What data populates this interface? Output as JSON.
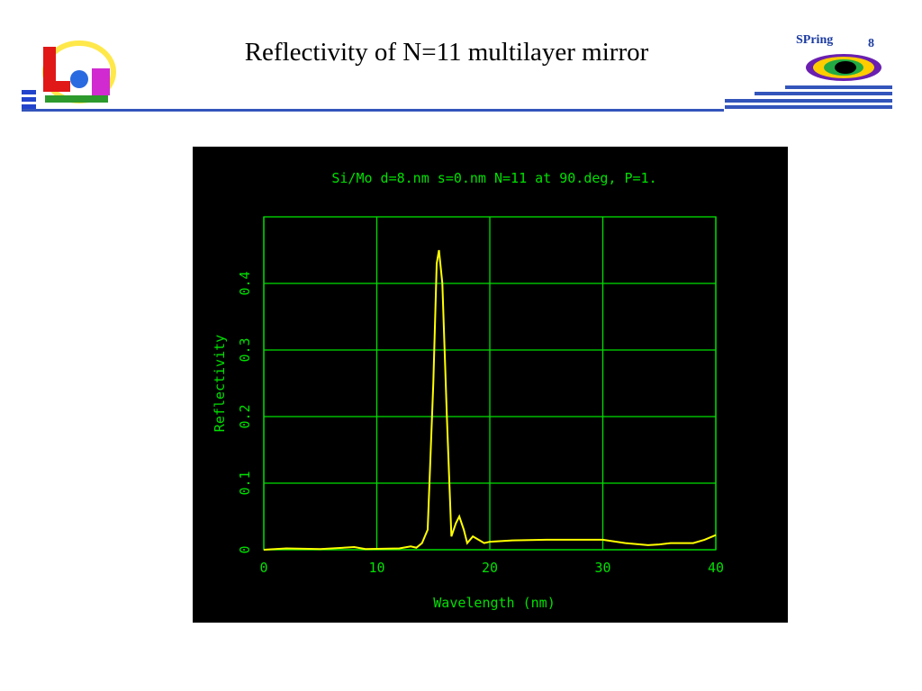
{
  "slide": {
    "title": "Reflectivity of N=11 multilayer mirror",
    "logo_text": "SPring",
    "logo_number": "8"
  },
  "chart_data": {
    "type": "line",
    "title": "Si/Mo d=8.nm s=0.nm N=11 at 90.deg, P=1.",
    "x_label": "Wavelength (nm)",
    "y_label": "Reflectivity",
    "x": [
      0,
      2,
      5,
      8,
      9,
      12,
      13,
      13.5,
      14,
      14.5,
      15,
      15.3,
      15.5,
      15.8,
      16.2,
      16.6,
      17,
      17.3,
      17.7,
      18,
      18.5,
      19,
      19.5,
      20,
      22,
      25,
      30,
      32,
      34,
      35,
      36,
      38,
      39,
      40
    ],
    "values": [
      0,
      0.002,
      0.001,
      0.004,
      0.001,
      0.002,
      0.005,
      0.003,
      0.01,
      0.03,
      0.25,
      0.43,
      0.45,
      0.4,
      0.2,
      0.02,
      0.04,
      0.05,
      0.03,
      0.01,
      0.02,
      0.015,
      0.01,
      0.012,
      0.014,
      0.015,
      0.015,
      0.01,
      0.007,
      0.008,
      0.01,
      0.01,
      0.015,
      0.022
    ],
    "color": "#ffff00",
    "grid": true,
    "xlim": [
      0,
      40
    ],
    "xticks": [
      0,
      10,
      20,
      30,
      40
    ],
    "ylim": [
      0,
      0.5
    ],
    "yticks": [
      0,
      0.1,
      0.2,
      0.3,
      0.4
    ]
  }
}
